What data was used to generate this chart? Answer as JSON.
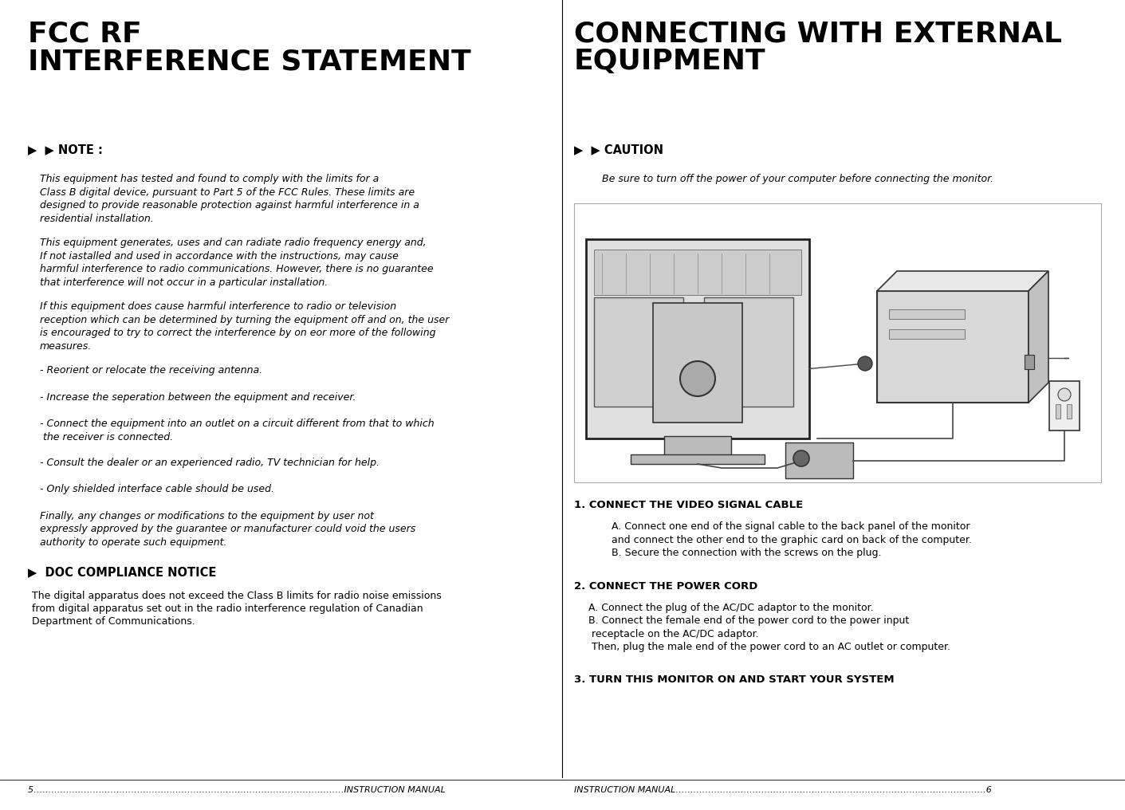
{
  "background_color": "#ffffff",
  "left_title_display": "FCC RF\nINTERFERENCE STATEMENT",
  "right_title_display": "CONNECTING WITH EXTERNAL\nEQUIPMENT",
  "note_header": "▶  ▶ NOTE :",
  "note_paragraphs": [
    "This equipment has tested and found to comply with the limits for a\nClass B digital device, pursuant to Part 5 of the FCC Rules. These limits are\ndesigned to provide reasonable protection against harmful interference in a\nresidential installation.",
    "This equipment generates, uses and can radiate radio frequency energy and,\nIf not iastalled and used in accordance with the instructions, may cause\nharmful interference to radio communications. However, there is no guarantee\nthat interference will not occur in a particular installation.",
    "If this equipment does cause harmful interference to radio or television\nreception which can be determined by turning the equipment off and on, the user\nis encouraged to try to correct the interference by on eor more of the following\nmeasures.",
    "- Reorient or relocate the receiving antenna.",
    "- Increase the seperation between the equipment and receiver.",
    "- Connect the equipment into an outlet on a circuit different from that to which\n the receiver is connected.",
    "- Consult the dealer or an experienced radio, TV technician for help.",
    "- Only shielded interface cable should be used.",
    "Finally, any changes or modifications to the equipment by user not\nexpressly approved by the guarantee or manufacturer could void the users\nauthority to operate such equipment."
  ],
  "doc_header": "▶  DOC COMPLIANCE NOTICE",
  "doc_text": "The digital apparatus does not exceed the Class B limits for radio noise emissions\nfrom digital apparatus set out in the radio interference regulation of Canadian\nDepartment of Communications.",
  "caution_header": "▶  ▶ CAUTION",
  "caution_text": "Be sure to turn off the power of your computer before connecting the monitor.",
  "instr1_bold": "1. CONNECT THE VIDEO SIGNAL CABLE",
  "instr1_text": "   A. Connect one end of the signal cable to the back panel of the monitor\n   and connect the other end to the graphic card on back of the computer.\n   B. Secure the connection with the screws on the plug.",
  "instr2_bold": "2. CONNECT THE POWER CORD",
  "instr2_text": "  A. Connect the plug of the AC/DC adaptor to the monitor.\n  B. Connect the female end of the power cord to the power input\n   receptacle on the AC/DC adaptor.\n   Then, plug the male end of the power cord to an AC outlet or computer.",
  "instr3_bold": "3. TURN THIS MONITOR ON AND START YOUR SYSTEM",
  "footer_left": "5……………………………………………………………………………………………INSTRUCTION MANUAL",
  "footer_right": "INSTRUCTION MANUAL……………………………………………………………………………………………6",
  "text_color": "#000000",
  "title_fontsize": 26,
  "header_fontsize": 10.5,
  "body_fontsize": 9.0,
  "bold_fontsize": 9.5,
  "footer_fontsize": 8.0
}
